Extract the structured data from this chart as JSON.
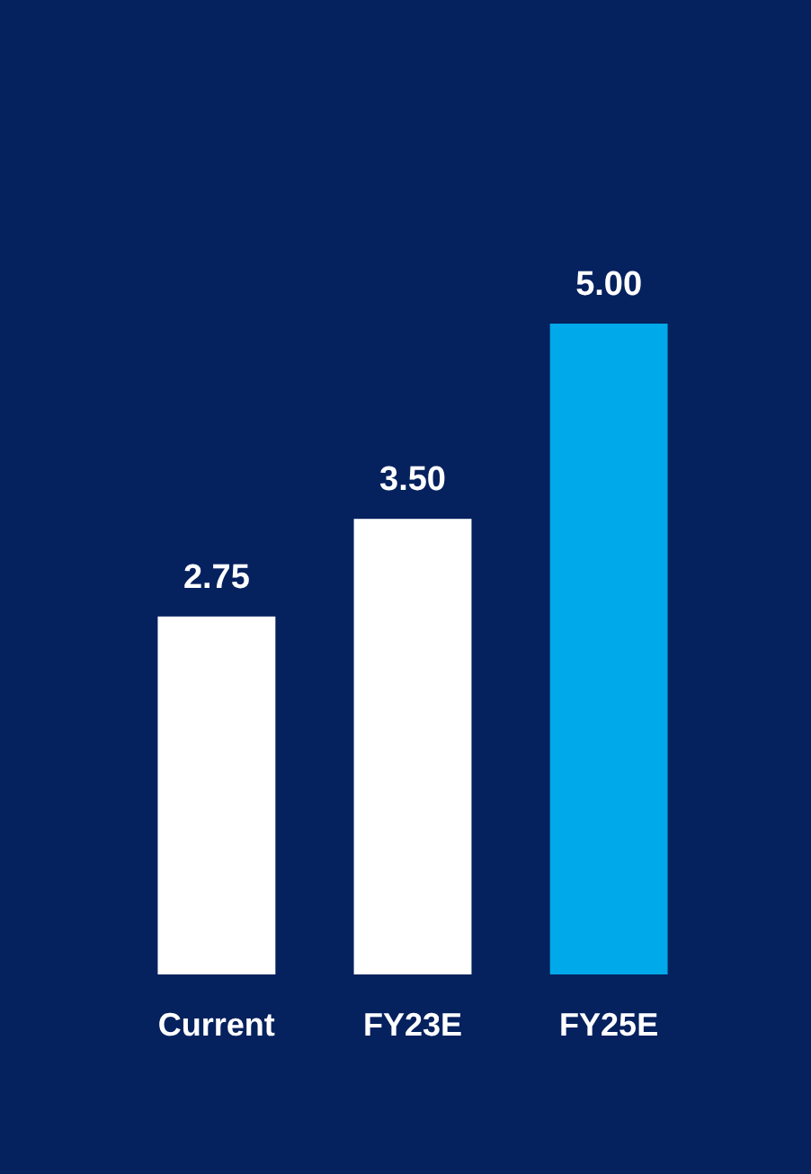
{
  "chart_data": {
    "type": "bar",
    "categories": [
      "Current",
      "FY23E",
      "FY25E"
    ],
    "values": [
      2.75,
      3.5,
      5.0
    ],
    "colors": [
      "#ffffff",
      "#ffffff",
      "#00a9ea"
    ],
    "value_labels": [
      "2.75",
      "3.50",
      "5.00"
    ]
  }
}
